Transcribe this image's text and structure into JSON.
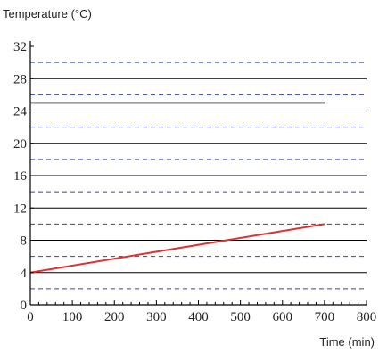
{
  "chart_data": {
    "type": "line",
    "title": "",
    "ylabel": "Temperature (°C)",
    "xlabel": "Time (min)",
    "xlim": [
      0,
      800
    ],
    "ylim": [
      0,
      32
    ],
    "xticks": [
      0,
      100,
      200,
      300,
      400,
      500,
      600,
      700,
      800
    ],
    "yticks": [
      0,
      4,
      8,
      12,
      16,
      20,
      24,
      28,
      32
    ],
    "solid_gridlines_y": [
      4,
      8,
      12,
      16,
      20,
      24,
      28
    ],
    "dashed_gridlines_y": [
      2,
      6,
      10,
      14,
      18,
      22,
      26,
      30
    ],
    "grid_solid_color": "#000000",
    "grid_dashed_color": "#3344aa",
    "series": [
      {
        "color": "#e03030",
        "x": [
          0,
          700
        ],
        "y": [
          4,
          10
        ]
      },
      {
        "color": "#000000",
        "x": [
          0,
          700
        ],
        "y": [
          25,
          25
        ]
      }
    ]
  }
}
